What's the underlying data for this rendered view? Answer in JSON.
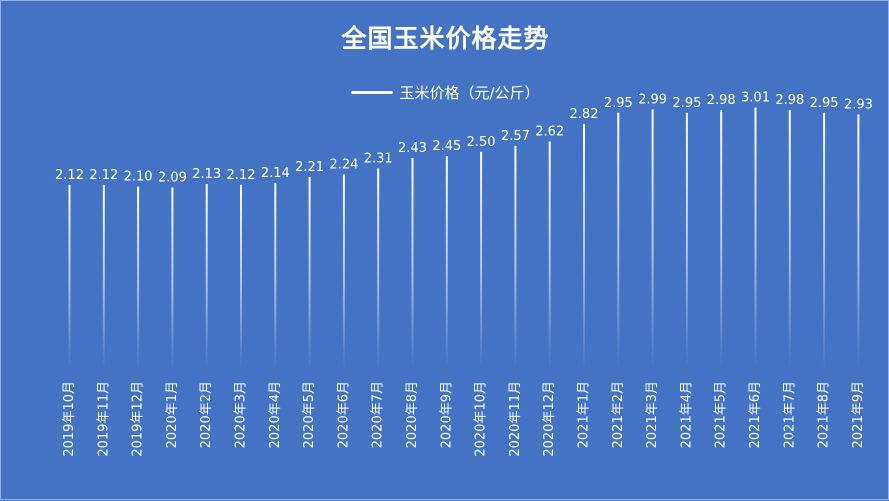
{
  "chart_data": {
    "type": "bar",
    "title": "全国玉米价格走势",
    "legend_position": "top",
    "grid": false,
    "series": [
      {
        "name": "玉米价格（元/公斤）",
        "color": "#FFFFFF",
        "values": [
          2.12,
          2.12,
          2.1,
          2.09,
          2.13,
          2.12,
          2.14,
          2.21,
          2.24,
          2.31,
          2.43,
          2.45,
          2.5,
          2.57,
          2.62,
          2.82,
          2.95,
          2.99,
          2.95,
          2.98,
          3.01,
          2.98,
          2.95,
          2.93
        ]
      }
    ],
    "data_labels": [
      "2.12",
      "2.12",
      "2.10",
      "2.09",
      "2.13",
      "2.12",
      "2.14",
      "2.21",
      "2.24",
      "2.31",
      "2.43",
      "2.45",
      "2.50",
      "2.57",
      "2.62",
      "2.82",
      "2.95",
      "2.99",
      "2.95",
      "2.98",
      "3.01",
      "2.98",
      "2.95",
      "2.93"
    ],
    "categories": [
      "2019年10月",
      "2019年11月",
      "2019年12月",
      "2020年1月",
      "2020年2月",
      "2020年3月",
      "2020年4月",
      "2020年5月",
      "2020年6月",
      "2020年7月",
      "2020年8月",
      "2020年9月",
      "2020年10月",
      "2020年11月",
      "2020年12月",
      "2021年1月",
      "2021年2月",
      "2021年3月",
      "2021年4月",
      "2021年5月",
      "2021年6月",
      "2021年7月",
      "2021年8月",
      "2021年9月"
    ],
    "ylim": [
      0,
      3.5
    ]
  },
  "colors": {
    "background": "#4472C4",
    "bar": "#FFFFFF",
    "text": "#FFFFFF"
  }
}
